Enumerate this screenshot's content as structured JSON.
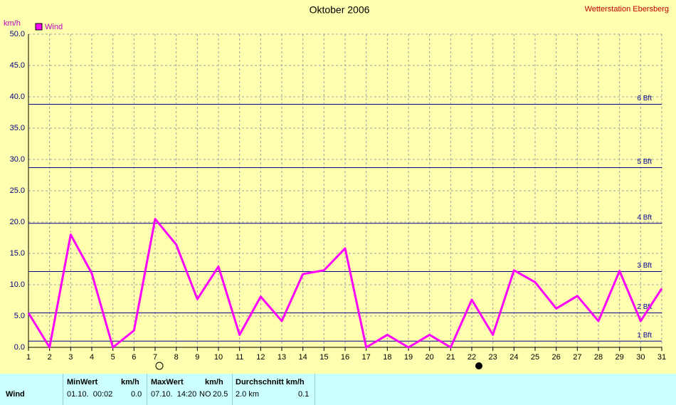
{
  "chart_data": {
    "type": "line",
    "title": "Oktober 2006",
    "station": "Wetterstation Ebersberg",
    "y_label": "km/h",
    "x": [
      1,
      2,
      3,
      4,
      5,
      6,
      7,
      8,
      9,
      10,
      11,
      12,
      13,
      14,
      15,
      16,
      17,
      18,
      19,
      20,
      21,
      22,
      23,
      24,
      25,
      26,
      27,
      28,
      29,
      30,
      31
    ],
    "series": [
      {
        "name": "Wind",
        "color": "#ff00ff",
        "values": [
          5.5,
          0,
          18,
          11.8,
          0,
          2.7,
          20.5,
          16.4,
          7.7,
          12.9,
          2,
          8.1,
          4.2,
          11.7,
          12.3,
          15.8,
          0,
          2,
          0,
          2,
          0,
          7.6,
          2,
          12.3,
          10.4,
          6.2,
          8.2,
          4.2,
          12.2,
          4.2,
          9.4
        ]
      }
    ],
    "xlim": [
      1,
      31
    ],
    "xticks": [
      1,
      2,
      3,
      4,
      5,
      6,
      7,
      8,
      9,
      10,
      11,
      12,
      13,
      14,
      15,
      16,
      17,
      18,
      19,
      20,
      21,
      22,
      23,
      24,
      25,
      26,
      27,
      28,
      29,
      30,
      31
    ],
    "ylim": [
      0,
      50
    ],
    "yticks": [
      {
        "value": 0,
        "label": "0.0"
      },
      {
        "value": 5,
        "label": "5.0"
      },
      {
        "value": 10,
        "label": "10.0"
      },
      {
        "value": 15,
        "label": "15.0"
      },
      {
        "value": 20,
        "label": "20.0"
      },
      {
        "value": 25,
        "label": "25.0"
      },
      {
        "value": 30,
        "label": "30.0"
      },
      {
        "value": 35,
        "label": "35.0"
      },
      {
        "value": 40,
        "label": "40.0"
      },
      {
        "value": 45,
        "label": "45.0"
      },
      {
        "value": 50,
        "label": "50.0"
      }
    ],
    "grid": true,
    "reference_lines": [
      {
        "value": 1,
        "label": "1 Bft"
      },
      {
        "value": 5.5,
        "label": "2 Bft"
      },
      {
        "value": 12.1,
        "label": "3 Bft"
      },
      {
        "value": 19.8,
        "label": "4 Bft"
      },
      {
        "value": 28.7,
        "label": "5 Bft"
      },
      {
        "value": 38.8,
        "label": "6 Bft"
      }
    ],
    "reference_color": "#000090"
  },
  "table": {
    "row_label": "Wind",
    "min": {
      "header": "MinWert",
      "unit": "km/h",
      "time": "01.10.  00:02",
      "value": "0.0"
    },
    "max": {
      "header": "MaxWert",
      "unit": "km/h",
      "time": "07.10.  14:20",
      "dir": "NO",
      "value": "20.5"
    },
    "avg": {
      "header": "Durchschnitt km/h",
      "dist": "2.0 km",
      "value": "0.1"
    }
  }
}
